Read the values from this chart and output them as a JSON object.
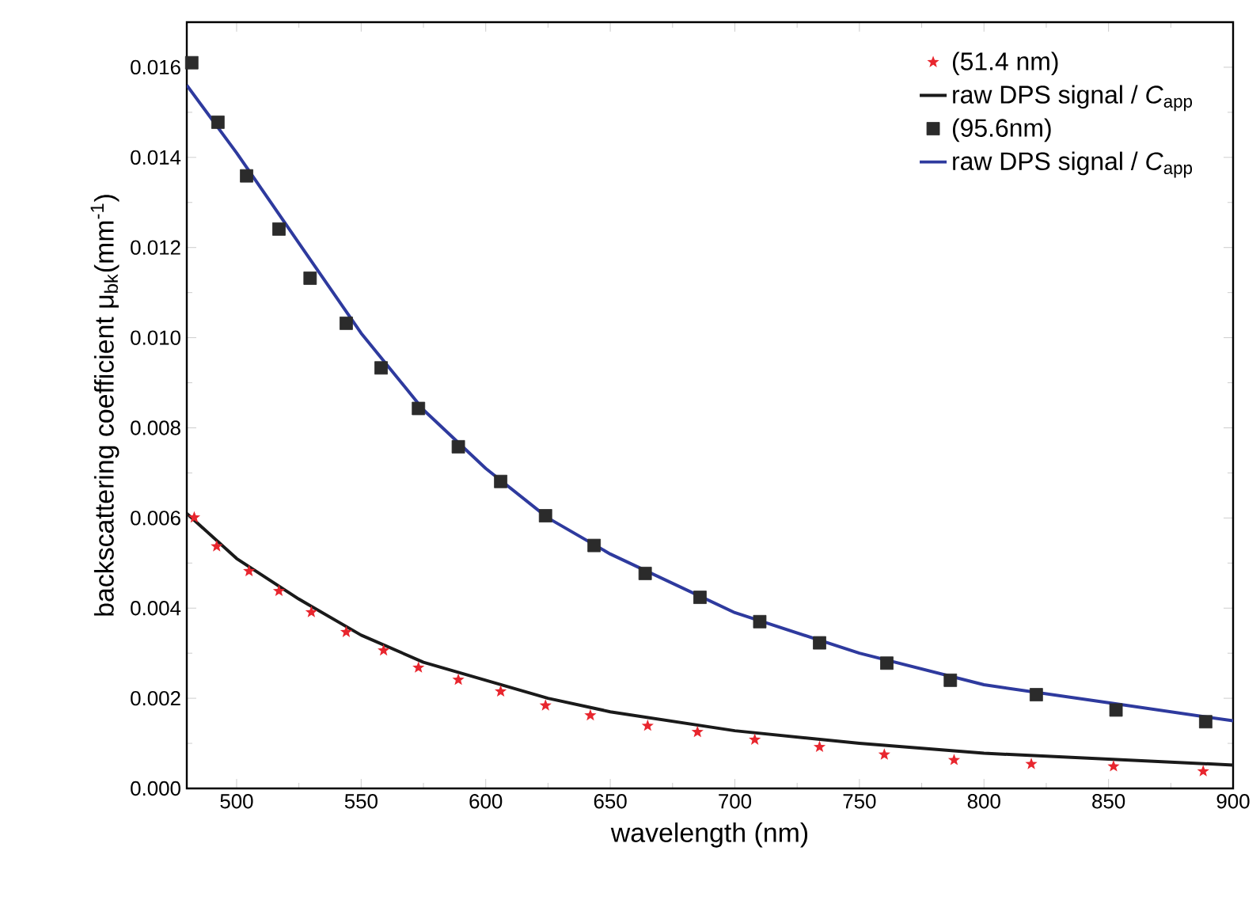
{
  "chart_data": {
    "type": "line",
    "xlabel": "wavelength (nm)",
    "ylabel": "backscattering coefficient  μ$_{bk}$(mm$^{-1}$)",
    "xlim": [
      480,
      900
    ],
    "ylim": [
      0,
      0.017
    ],
    "xticks": [
      500,
      550,
      600,
      650,
      700,
      750,
      800,
      850,
      900
    ],
    "yticks": [
      {
        "value": 0,
        "label": "0.000"
      },
      {
        "value": 0.002,
        "label": "0.002"
      },
      {
        "value": 0.004,
        "label": "0.004"
      },
      {
        "value": 0.006,
        "label": "0.006"
      },
      {
        "value": 0.008,
        "label": "0.008"
      },
      {
        "value": 0.01,
        "label": "0.010"
      },
      {
        "value": 0.012,
        "label": "0.012"
      },
      {
        "value": 0.014,
        "label": "0.014"
      },
      {
        "value": 0.016,
        "label": "0.016"
      }
    ],
    "grid": false,
    "legend": "top right",
    "series": [
      {
        "name": "(51.4 nm)",
        "type": "scatter",
        "marker": "star",
        "color": "#e8262e",
        "x": [
          483,
          492,
          505,
          517,
          530,
          544,
          559,
          573,
          589,
          606,
          624,
          642,
          665,
          685,
          708,
          734,
          760,
          788,
          819,
          852,
          888
        ],
        "values": [
          0.00601,
          0.00537,
          0.00482,
          0.00438,
          0.00391,
          0.00347,
          0.00306,
          0.00268,
          0.00241,
          0.00215,
          0.00184,
          0.00162,
          0.00139,
          0.00125,
          0.00108,
          0.00092,
          0.00075,
          0.00063,
          0.00054,
          0.00049,
          0.00038
        ]
      },
      {
        "name": "raw DPS signal  / *C*$_{app}$",
        "color": "#1a1a1a",
        "x": [
          480,
          500,
          525,
          550,
          575,
          600,
          625,
          650,
          700,
          750,
          800,
          850,
          900
        ],
        "values": [
          0.0061,
          0.0051,
          0.0042,
          0.0034,
          0.0028,
          0.0024,
          0.002,
          0.0017,
          0.00128,
          0.001,
          0.00078,
          0.00065,
          0.00052
        ]
      },
      {
        "name": "(95.6nm)",
        "type": "scatter",
        "marker": "square",
        "color": "#2b2b2b",
        "x": [
          482,
          492.5,
          504,
          517,
          529.5,
          544,
          558,
          573,
          589,
          606,
          624,
          643.5,
          664,
          686,
          710,
          734,
          761,
          786.5,
          821,
          853,
          889
        ],
        "values": [
          0.0161,
          0.01478,
          0.01359,
          0.01241,
          0.01132,
          0.01032,
          0.00933,
          0.00843,
          0.00758,
          0.00681,
          0.00605,
          0.00539,
          0.00477,
          0.00424,
          0.0037,
          0.00323,
          0.00278,
          0.0024,
          0.00208,
          0.00174,
          0.00148
        ]
      },
      {
        "name": "raw DPS signal  / *C*$_{app}$",
        "color": "#2e3a9e",
        "x": [
          480,
          500,
          525,
          550,
          575,
          600,
          625,
          650,
          700,
          750,
          800,
          850,
          900
        ],
        "values": [
          0.0156,
          0.0141,
          0.0121,
          0.0101,
          0.0084,
          0.0071,
          0.006,
          0.0052,
          0.0039,
          0.003,
          0.0023,
          0.0019,
          0.0015
        ]
      }
    ]
  }
}
